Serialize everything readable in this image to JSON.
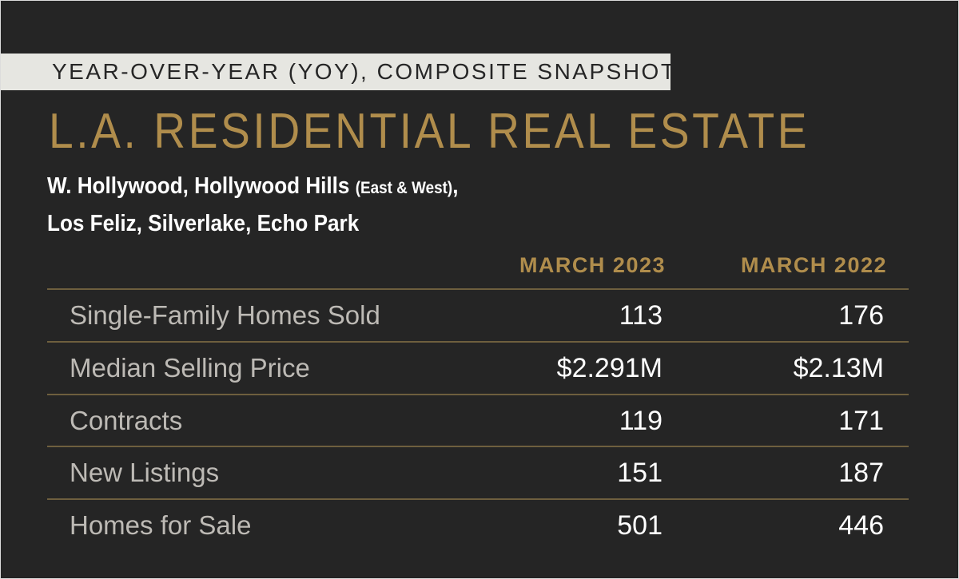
{
  "banner": "YEAR-OVER-YEAR (YOY), COMPOSITE SNAPSHOT",
  "title": "L.A. RESIDENTIAL REAL ESTATE",
  "subtitle": {
    "line1_main": "W. Hollywood, Hollywood Hills",
    "line1_small": "(East & West)",
    "line1_comma": ",",
    "line2": "Los Feliz, Silverlake, Echo Park"
  },
  "columns": [
    "MARCH 2023",
    "MARCH 2022"
  ],
  "rows": [
    {
      "label": "Single-Family Homes Sold",
      "march_2023": "113",
      "march_2022": "176"
    },
    {
      "label": "Median Selling Price",
      "march_2023": "$2.291M",
      "march_2022": "$2.13M"
    },
    {
      "label": "Contracts",
      "march_2023": "119",
      "march_2022": "171"
    },
    {
      "label": "New Listings",
      "march_2023": "151",
      "march_2022": "187"
    },
    {
      "label": "Homes for Sale",
      "march_2023": "501",
      "march_2022": "446"
    }
  ],
  "colors": {
    "background": "#252525",
    "gold": "#b08d4c",
    "banner_bg": "#e6e6e1",
    "label": "#bdbab5",
    "rule": "#6e5f3e"
  }
}
